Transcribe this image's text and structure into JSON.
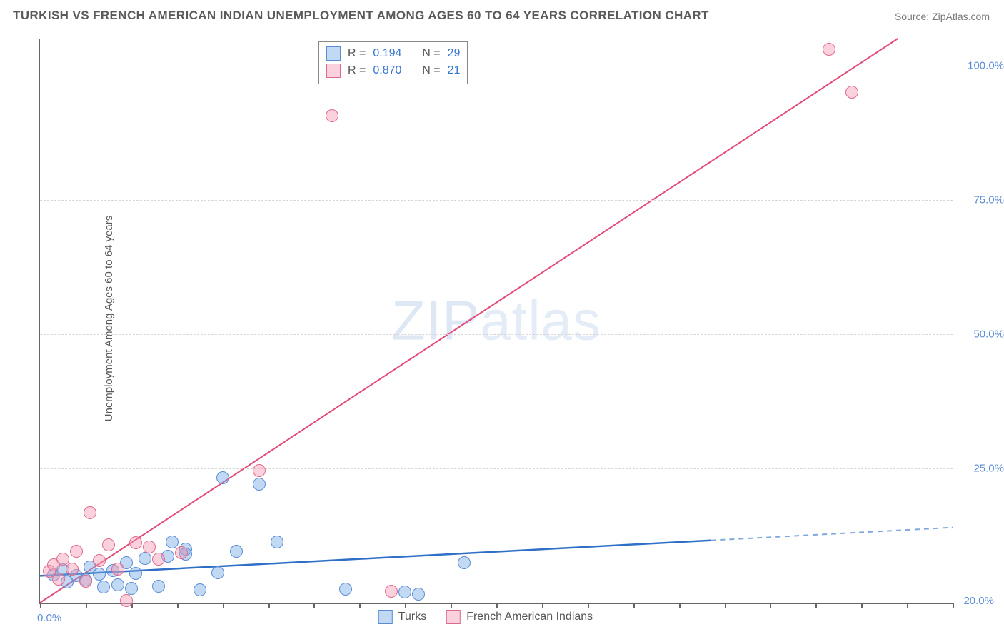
{
  "title": "TURKISH VS FRENCH AMERICAN INDIAN UNEMPLOYMENT AMONG AGES 60 TO 64 YEARS CORRELATION CHART",
  "source_prefix": "Source: ",
  "source_name": "ZipAtlas.com",
  "y_axis_label": "Unemployment Among Ages 60 to 64 years",
  "watermark_a": "ZIP",
  "watermark_b": "atlas",
  "chart": {
    "type": "scatter",
    "xlim": [
      0,
      20
    ],
    "ylim": [
      0,
      105
    ],
    "x_ticks_major": [
      0,
      20
    ],
    "x_ticks_minor_step": 1,
    "x_tick_labels": [
      "0.0%",
      "20.0%"
    ],
    "y_ticks": [
      25,
      50,
      75,
      100
    ],
    "y_tick_labels": [
      "25.0%",
      "50.0%",
      "75.0%",
      "100.0%"
    ],
    "grid_color": "#d8d8d8",
    "background_color": "#ffffff",
    "series": [
      {
        "key": "turks",
        "label": "Turks",
        "R": "0.194",
        "N": "29",
        "marker_fill": "rgba(120,170,231,0.45)",
        "marker_stroke": "#5b8dd6",
        "line_color": "#2f6fc7",
        "line_width": 2.5,
        "trend": {
          "x1": 0,
          "y1": 5.0,
          "x2": 14.7,
          "y2": 11.6,
          "x_ext": 20,
          "y_ext": 14.0,
          "dashed_from": 14.7
        },
        "points": [
          [
            0.3,
            5.2
          ],
          [
            0.5,
            6.1
          ],
          [
            0.6,
            3.9
          ],
          [
            0.8,
            5.0
          ],
          [
            1.0,
            4.2
          ],
          [
            1.1,
            6.6
          ],
          [
            1.3,
            5.3
          ],
          [
            1.4,
            2.9
          ],
          [
            1.6,
            6.0
          ],
          [
            1.7,
            3.3
          ],
          [
            1.9,
            7.4
          ],
          [
            2.0,
            2.7
          ],
          [
            2.1,
            5.5
          ],
          [
            2.3,
            8.2
          ],
          [
            2.6,
            3.1
          ],
          [
            2.8,
            8.7
          ],
          [
            2.9,
            11.3
          ],
          [
            3.2,
            10.0
          ],
          [
            3.2,
            9.1
          ],
          [
            3.5,
            2.4
          ],
          [
            3.9,
            5.6
          ],
          [
            4.0,
            23.2
          ],
          [
            4.8,
            22.0
          ],
          [
            4.3,
            9.6
          ],
          [
            5.2,
            11.3
          ],
          [
            6.7,
            2.5
          ],
          [
            8.0,
            2.0
          ],
          [
            8.3,
            1.6
          ],
          [
            9.3,
            7.5
          ]
        ]
      },
      {
        "key": "fai",
        "label": "French American Indians",
        "R": "0.870",
        "N": "21",
        "marker_fill": "rgba(244,153,178,0.45)",
        "marker_stroke": "#e06a8c",
        "line_color": "#e34b78",
        "line_width": 2,
        "trend": {
          "x1": 0,
          "y1": 0.0,
          "x2": 18.8,
          "y2": 105.0
        },
        "points": [
          [
            0.2,
            5.8
          ],
          [
            0.3,
            7.1
          ],
          [
            0.4,
            4.4
          ],
          [
            0.5,
            8.1
          ],
          [
            0.7,
            6.2
          ],
          [
            0.8,
            9.6
          ],
          [
            1.0,
            4.0
          ],
          [
            1.1,
            16.8
          ],
          [
            1.3,
            7.9
          ],
          [
            1.5,
            10.7
          ],
          [
            1.7,
            6.3
          ],
          [
            1.9,
            0.4
          ],
          [
            2.1,
            11.2
          ],
          [
            2.4,
            10.4
          ],
          [
            2.6,
            8.1
          ],
          [
            3.1,
            9.3
          ],
          [
            4.8,
            24.6
          ],
          [
            6.4,
            90.6
          ],
          [
            7.7,
            2.1
          ],
          [
            17.3,
            103.0
          ],
          [
            17.8,
            95.0
          ]
        ]
      }
    ]
  },
  "legend_labels": {
    "R": "R  =",
    "N": "N  ="
  }
}
